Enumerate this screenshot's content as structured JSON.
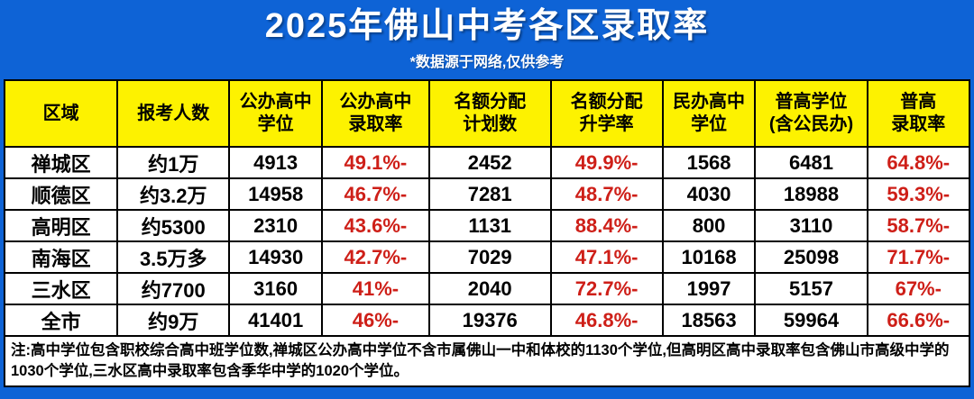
{
  "title": "2025年佛山中考各区录取率",
  "subtitle": "*数据源于网络,仅供参考",
  "colors": {
    "background_blue": "#0e63d6",
    "header_yellow": "#fdf200",
    "rate_red": "#ce1f18",
    "text_black": "#000000",
    "title_white": "#ffffff"
  },
  "table": {
    "headers": [
      "区域",
      "报考人数",
      "公办高中\n学位",
      "公办高中\n录取率",
      "名额分配\n计划数",
      "名额分配\n升学率",
      "民办高中\n学位",
      "普高学位\n(含公民办)",
      "普高\n录取率"
    ],
    "red_columns": [
      3,
      5,
      8
    ],
    "rows": [
      [
        "禅城区",
        "约1万",
        "4913",
        "49.1%-",
        "2452",
        "49.9%-",
        "1568",
        "6481",
        "64.8%-"
      ],
      [
        "顺德区",
        "约3.2万",
        "14958",
        "46.7%-",
        "7281",
        "48.7%-",
        "4030",
        "18988",
        "59.3%-"
      ],
      [
        "高明区",
        "约5300",
        "2310",
        "43.6%-",
        "1131",
        "88.4%-",
        "800",
        "3110",
        "58.7%-"
      ],
      [
        "南海区",
        "3.5万多",
        "14930",
        "42.7%-",
        "7029",
        "47.1%-",
        "10168",
        "25098",
        "71.7%-"
      ],
      [
        "三水区",
        "约7700",
        "3160",
        "41%-",
        "2040",
        "72.7%-",
        "1997",
        "5157",
        "67%-"
      ],
      [
        "全市",
        "约9万",
        "41401",
        "46%-",
        "19376",
        "46.8%-",
        "18563",
        "59964",
        "66.6%-"
      ]
    ]
  },
  "note": "注:高中学位包含职校综合高中班学位数,禅城区公办高中学位不含市属佛山一中和体校的1130个学位,但高明区高中录取率包含佛山市高级中学的1030个学位,三水区高中录取率包含季华中学的1020个学位。"
}
